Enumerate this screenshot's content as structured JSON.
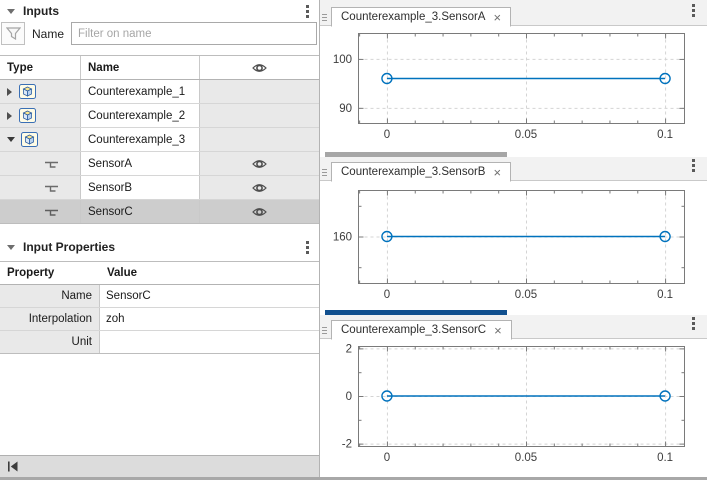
{
  "inputs_panel": {
    "title": "Inputs",
    "filter": {
      "label": "Name",
      "placeholder": "Filter on name"
    },
    "columns": {
      "type": "Type",
      "name": "Name",
      "visibility": "eye-icon"
    },
    "rows": [
      {
        "name": "Counterexample_1",
        "icon": "bus-icon",
        "state": "collapsed",
        "eye": false,
        "selected": false
      },
      {
        "name": "Counterexample_2",
        "icon": "bus-icon",
        "state": "collapsed",
        "eye": false,
        "selected": false
      },
      {
        "name": "Counterexample_3",
        "icon": "bus-icon",
        "state": "expanded",
        "eye": false,
        "selected": false
      },
      {
        "name": "SensorA",
        "icon": "signal-icon",
        "state": "leaf",
        "eye": true,
        "selected": false
      },
      {
        "name": "SensorB",
        "icon": "signal-icon",
        "state": "leaf",
        "eye": true,
        "selected": false
      },
      {
        "name": "SensorC",
        "icon": "signal-icon",
        "state": "leaf",
        "eye": true,
        "selected": true
      }
    ]
  },
  "properties_panel": {
    "title": "Input Properties",
    "columns": {
      "property": "Property",
      "value": "Value"
    },
    "rows": [
      {
        "property": "Name",
        "value": "SensorC"
      },
      {
        "property": "Interpolation",
        "value": "zoh"
      },
      {
        "property": "Unit",
        "value": ""
      }
    ]
  },
  "bottom_bar": {
    "icon": "skip-to-start-icon"
  },
  "panes": [
    {
      "tab": "Counterexample_3.SensorA",
      "close": "×",
      "strip_color": null
    },
    {
      "tab": "Counterexample_3.SensorB",
      "close": "×",
      "strip_color": "#a6a6a6"
    },
    {
      "tab": "Counterexample_3.SensorC",
      "close": "×",
      "strip_color": "#11508f"
    }
  ],
  "chart_data": [
    {
      "type": "line",
      "title": "Counterexample_3.SensorA",
      "x": [
        0,
        0.1
      ],
      "y": [
        96,
        96
      ],
      "marker": "o",
      "line_color": "#0072BD",
      "xlim": [
        -0.0104,
        0.1068
      ],
      "ylim": [
        86.9,
        105.3
      ],
      "xticks": [
        0,
        0.05,
        0.1
      ],
      "xtick_labels": [
        "0",
        "0.05",
        "0.1"
      ],
      "yticks": [
        90,
        100
      ],
      "ytick_labels": [
        "90",
        "100"
      ],
      "y_minor": [],
      "x_minor_step": 0.01,
      "grid": true,
      "legend": "none"
    },
    {
      "type": "line",
      "title": "Counterexample_3.SensorB",
      "x": [
        0,
        0.1
      ],
      "y": [
        160,
        160
      ],
      "marker": "o",
      "line_color": "#0072BD",
      "xlim": [
        -0.0104,
        0.1068
      ],
      "ylim": [
        150,
        170
      ],
      "xticks": [
        0,
        0.05,
        0.1
      ],
      "xtick_labels": [
        "0",
        "0.05",
        "0.1"
      ],
      "yticks": [
        160
      ],
      "ytick_labels": [
        "160"
      ],
      "y_minor": [
        153.4,
        166.6
      ],
      "x_minor_step": 0.01,
      "grid": true,
      "legend": "none"
    },
    {
      "type": "line",
      "title": "Counterexample_3.SensorC",
      "x": [
        0,
        0.1
      ],
      "y": [
        0,
        0
      ],
      "marker": "o",
      "line_color": "#0072BD",
      "xlim": [
        -0.0104,
        0.1068
      ],
      "ylim": [
        -2.1,
        2.1
      ],
      "xticks": [
        0,
        0.05,
        0.1
      ],
      "xtick_labels": [
        "0",
        "0.05",
        "0.1"
      ],
      "yticks": [
        -2,
        0,
        2
      ],
      "ytick_labels": [
        "-2",
        "0",
        "2"
      ],
      "y_minor": [
        -1,
        1
      ],
      "x_minor_step": 0.01,
      "grid": true,
      "legend": "none"
    }
  ],
  "colors": {
    "line_blue": "#0072BD",
    "selection_gray": "#cdcdcd",
    "cell_gray": "#e9e9e9",
    "active_strip_blue": "#11508f",
    "inactive_strip_gray": "#a6a6a6"
  }
}
